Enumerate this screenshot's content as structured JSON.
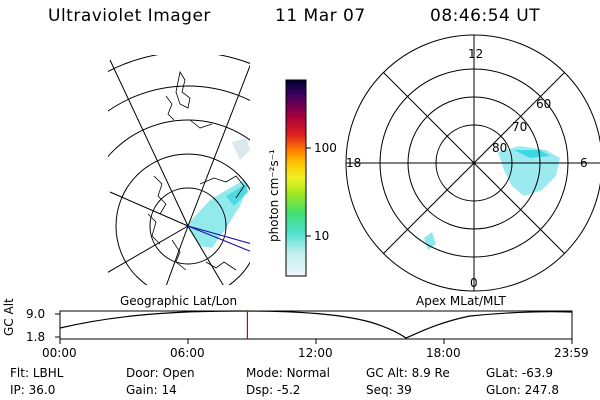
{
  "header": {
    "title": "Ultraviolet Imager",
    "date": "11 Mar 07",
    "time": "08:46:54 UT"
  },
  "colorbar": {
    "unit_label": "photon cm⁻²s⁻¹",
    "ticks": [
      "100",
      "10"
    ]
  },
  "polar_plot": {
    "mlt_labels": [
      "12",
      "18",
      "6",
      "0"
    ],
    "lat_labels": [
      "60",
      "70",
      "80"
    ]
  },
  "panel_labels": {
    "left": "Geographic Lat/Lon",
    "right": "Apex MLat/MLT"
  },
  "altitude_plot": {
    "ylabel": "GC Alt",
    "yticks": [
      "9.0",
      "1.8"
    ],
    "xticks": [
      "00:00",
      "06:00",
      "12:00",
      "18:00",
      "23:59"
    ],
    "current_time_fraction": 0.366
  },
  "info": {
    "row1": [
      {
        "label": "Flt:",
        "value": "LBHL"
      },
      {
        "label": "Door:",
        "value": "Open"
      },
      {
        "label": "Mode:",
        "value": "Normal"
      },
      {
        "label": "GC Alt:",
        "value": "8.9 Re"
      },
      {
        "label": "GLat:",
        "value": "-63.9"
      }
    ],
    "row2": [
      {
        "label": "IP:",
        "value": "36.0"
      },
      {
        "label": "Gain:",
        "value": "14"
      },
      {
        "label": "Dsp:",
        "value": "-5.2"
      },
      {
        "label": "Seq:",
        "value": "39"
      },
      {
        "label": "GLon:",
        "value": "247.8"
      }
    ]
  },
  "colors": {
    "aurora": "#6fe0e8",
    "marker": "#d00000",
    "track": "#000000"
  }
}
